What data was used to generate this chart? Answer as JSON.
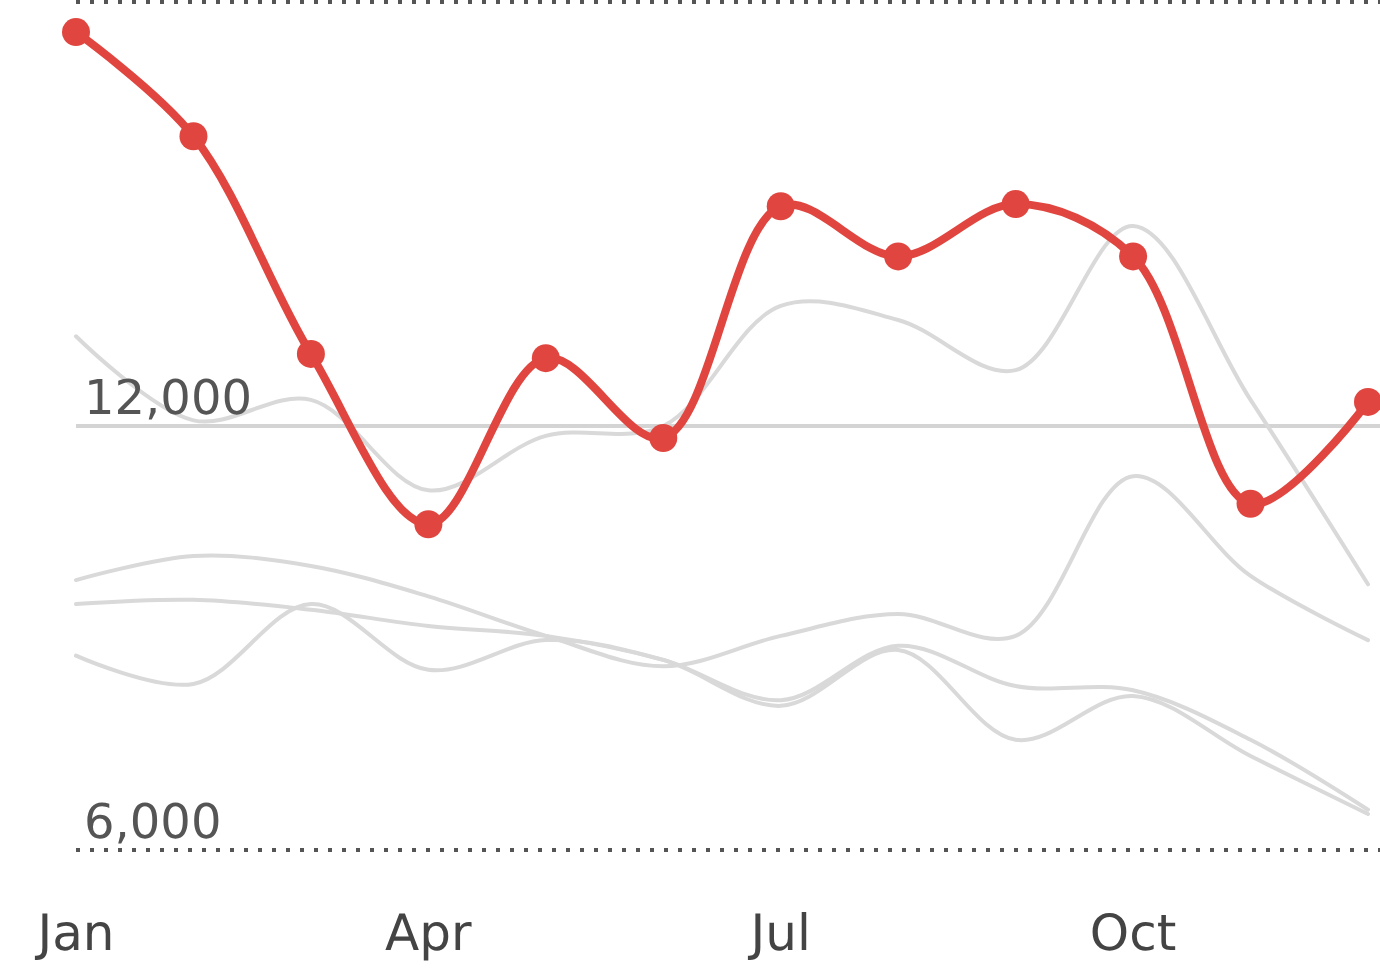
{
  "chart_data": {
    "type": "line",
    "categories": [
      "Jan",
      null,
      null,
      "Apr",
      null,
      null,
      "Jul",
      null,
      null,
      "Oct",
      null,
      null
    ],
    "ylim": [
      6000,
      18000
    ],
    "yticks": [
      {
        "value": 6000,
        "label": "6,000"
      },
      {
        "value": 12000,
        "label": "12,000"
      },
      {
        "value": 18000,
        "label": null
      }
    ],
    "grid": "y",
    "line_style": "solid",
    "series": [
      {
        "color": "#d9d9d9",
        "marker": "none",
        "values": [
          13270,
          12080,
          12370,
          11090,
          11860,
          12000,
          13700,
          13500,
          12790,
          14830,
          12370,
          9760
        ]
      },
      {
        "color": "#d9d9d9",
        "marker": "none",
        "values": [
          9820,
          10160,
          10020,
          9590,
          9030,
          8600,
          9030,
          9340,
          9030,
          11290,
          9880,
          8970
        ]
      },
      {
        "color": "#d9d9d9",
        "marker": "none",
        "values": [
          9480,
          9540,
          9400,
          9170,
          9030,
          8690,
          8120,
          8890,
          8320,
          8260,
          7560,
          6570
        ]
      },
      {
        "color": "#d9d9d9",
        "marker": "none",
        "values": [
          8750,
          8350,
          9480,
          8550,
          8970,
          8690,
          8040,
          8830,
          7560,
          8180,
          7330,
          6510
        ]
      },
      {
        "color": "#e0463f",
        "marker": "circle",
        "values": [
          17575,
          16100,
          13020,
          10610,
          12960,
          11830,
          15110,
          14400,
          15140,
          14400,
          10900,
          12340
        ]
      }
    ]
  }
}
